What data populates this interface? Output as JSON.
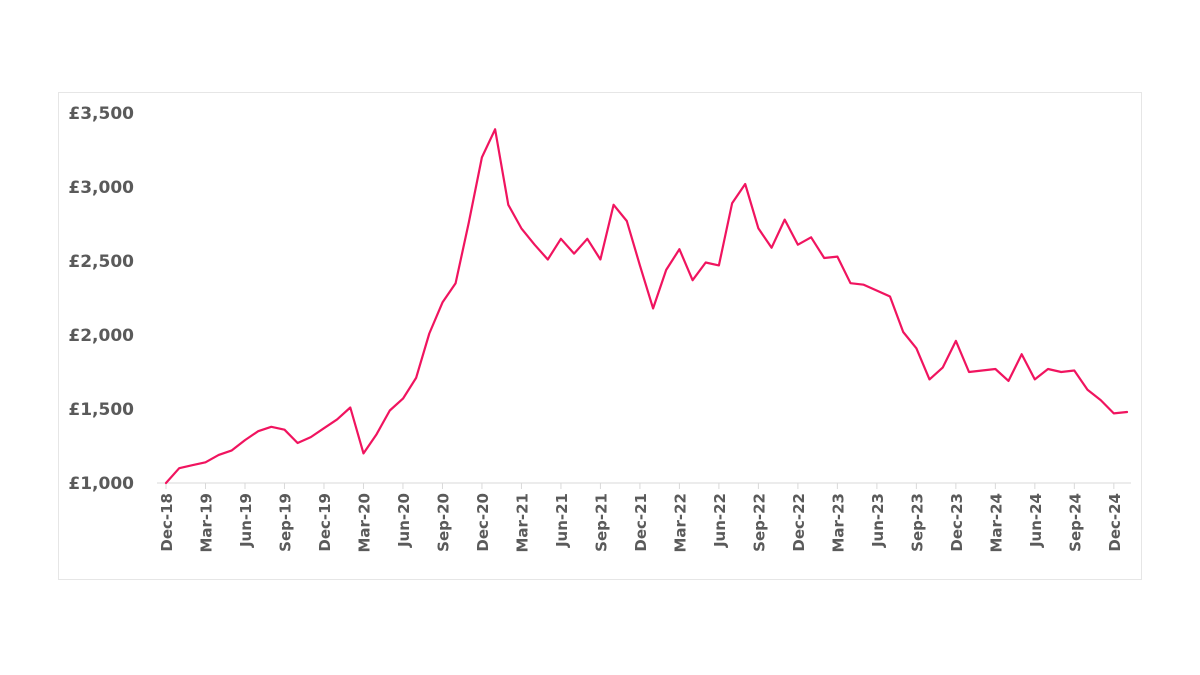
{
  "chart_data": {
    "type": "line",
    "title": "",
    "xlabel": "",
    "ylabel": "",
    "ylim": [
      1000,
      3500
    ],
    "yticks": [
      1000,
      1500,
      2000,
      2500,
      3000,
      3500
    ],
    "ytick_labels": [
      "£1,000",
      "£1,500",
      "£2,000",
      "£2,500",
      "£3,000",
      "£3,500"
    ],
    "xtick_labels": [
      "Dec-18",
      "Mar-19",
      "Jun-19",
      "Sep-19",
      "Dec-19",
      "Mar-20",
      "Jun-20",
      "Sep-20",
      "Dec-20",
      "Mar-21",
      "Jun-21",
      "Sep-21",
      "Dec-21",
      "Mar-22",
      "Jun-22",
      "Sep-22",
      "Dec-22",
      "Mar-23",
      "Jun-23",
      "Sep-23",
      "Dec-23",
      "Mar-24",
      "Jun-24",
      "Sep-24",
      "Dec-24"
    ],
    "grid": false,
    "line_color": "#f0145f",
    "series": [
      {
        "x": [
          "Dec-18",
          "Jan-19",
          "Feb-19",
          "Mar-19",
          "Apr-19",
          "May-19",
          "Jun-19",
          "Jul-19",
          "Aug-19",
          "Sep-19",
          "Oct-19",
          "Nov-19",
          "Dec-19",
          "Jan-20",
          "Feb-20",
          "Mar-20",
          "Apr-20",
          "May-20",
          "Jun-20",
          "Jul-20",
          "Aug-20",
          "Sep-20",
          "Oct-20",
          "Nov-20",
          "Dec-20",
          "Jan-21",
          "Feb-21",
          "Mar-21",
          "Apr-21",
          "May-21",
          "Jun-21",
          "Jul-21",
          "Aug-21",
          "Sep-21",
          "Oct-21",
          "Nov-21",
          "Dec-21",
          "Jan-22",
          "Feb-22",
          "Mar-22",
          "Apr-22",
          "May-22",
          "Jun-22",
          "Jul-22",
          "Aug-22",
          "Sep-22",
          "Oct-22",
          "Nov-22",
          "Dec-22",
          "Jan-23",
          "Feb-23",
          "Mar-23",
          "Apr-23",
          "May-23",
          "Jun-23",
          "Jul-23",
          "Aug-23",
          "Sep-23",
          "Oct-23",
          "Nov-23",
          "Dec-23",
          "Jan-24",
          "Feb-24",
          "Mar-24",
          "Apr-24",
          "May-24",
          "Jun-24",
          "Jul-24",
          "Aug-24",
          "Sep-24",
          "Oct-24",
          "Nov-24",
          "Dec-24",
          "Jan-25"
        ],
        "values": [
          1000,
          1100,
          1120,
          1140,
          1190,
          1220,
          1290,
          1350,
          1380,
          1360,
          1270,
          1310,
          1370,
          1430,
          1510,
          1200,
          1330,
          1490,
          1570,
          1710,
          2010,
          2220,
          2350,
          2760,
          3200,
          3390,
          2880,
          2720,
          2610,
          2510,
          2650,
          2550,
          2650,
          2510,
          2880,
          2770,
          2470,
          2180,
          2440,
          2580,
          2370,
          2490,
          2470,
          2890,
          3020,
          2720,
          2590,
          2780,
          2610,
          2660,
          2520,
          2530,
          2350,
          2340,
          2300,
          2260,
          2020,
          1910,
          1700,
          1780,
          1960,
          1750,
          1760,
          1770,
          1690,
          1870,
          1700,
          1770,
          1750,
          1760,
          1630,
          1560,
          1470,
          1480
        ]
      }
    ]
  }
}
